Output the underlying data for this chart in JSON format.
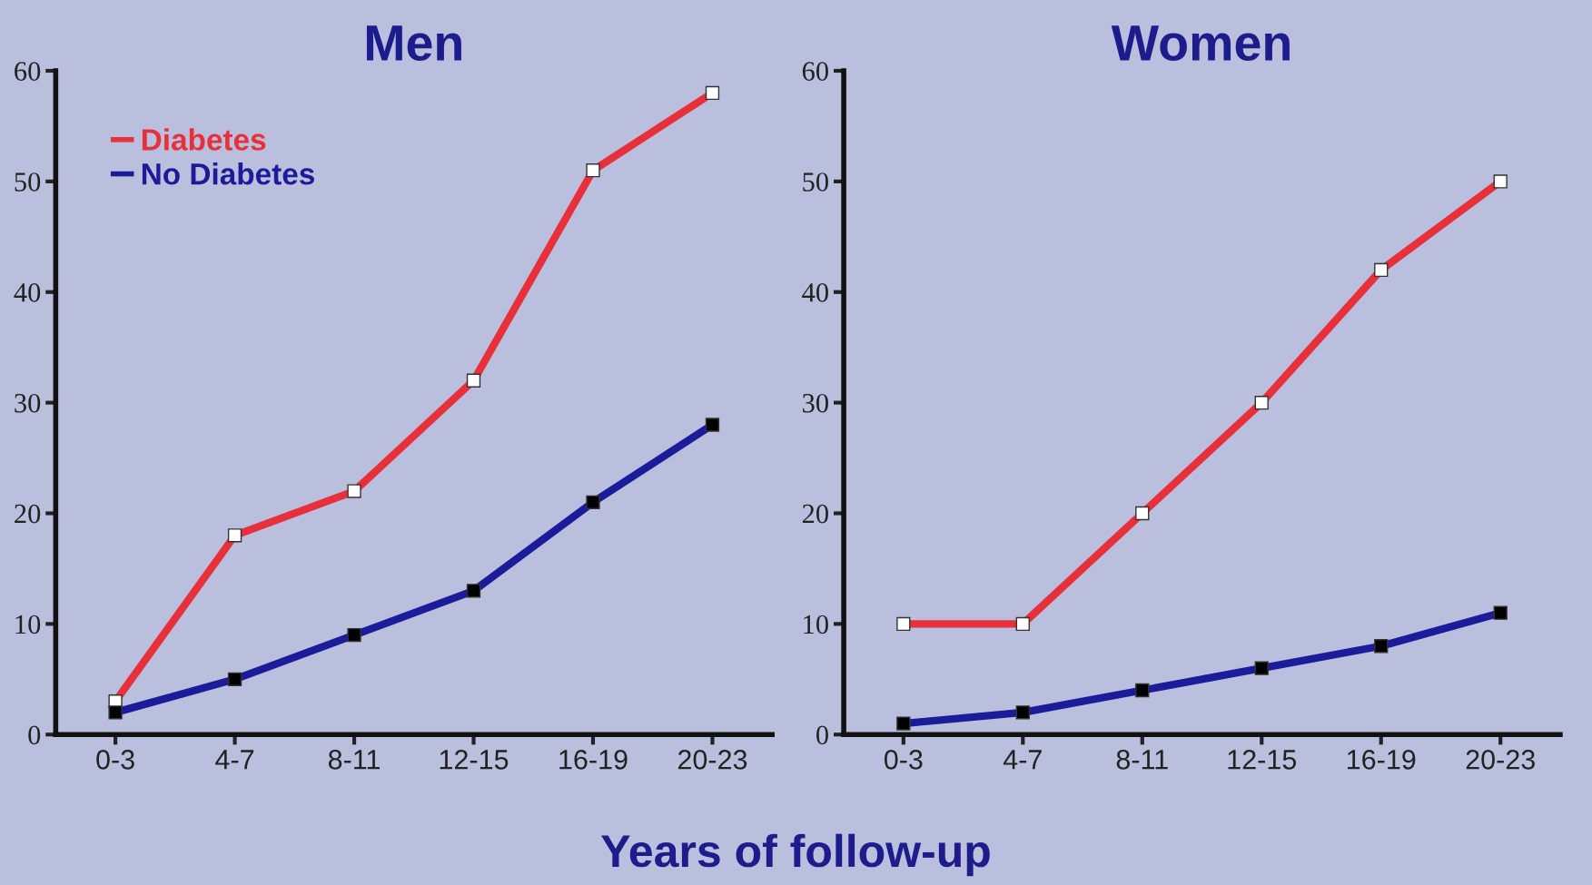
{
  "chart_data": [
    {
      "type": "line",
      "title": "Men",
      "xlabel": "Years of follow-up",
      "categories": [
        "0-3",
        "4-7",
        "8-11",
        "12-15",
        "16-19",
        "20-23"
      ],
      "ylim": [
        0,
        60
      ],
      "yticks": [
        0,
        10,
        20,
        30,
        40,
        50,
        60
      ],
      "marker": "square",
      "legend": "top left",
      "grid": false,
      "series": [
        {
          "name": "Diabetes",
          "color": "#e8303a",
          "values": [
            3,
            18,
            22,
            32,
            51,
            58
          ]
        },
        {
          "name": "No Diabetes",
          "color": "#1c1c9a",
          "values": [
            2,
            5,
            9,
            13,
            21,
            28
          ]
        }
      ]
    },
    {
      "type": "line",
      "title": "Women",
      "categories": [
        "0-3",
        "4-7",
        "8-11",
        "12-15",
        "16-19",
        "20-23"
      ],
      "ylim": [
        0,
        60
      ],
      "yticks": [
        0,
        10,
        20,
        30,
        40,
        50,
        60
      ],
      "marker": "square",
      "grid": false,
      "series": [
        {
          "color": "#e8303a",
          "values": [
            10,
            10,
            20,
            30,
            42,
            50
          ]
        },
        {
          "color": "#1c1c9a",
          "values": [
            1,
            2,
            4,
            6,
            8,
            11
          ]
        }
      ]
    }
  ]
}
